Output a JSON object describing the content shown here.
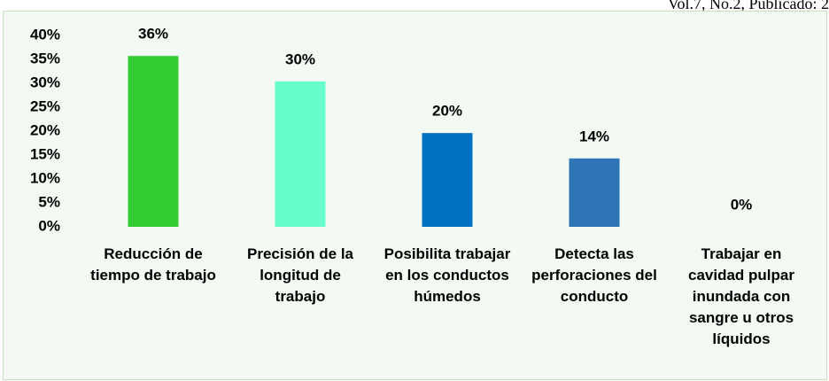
{
  "header_text": "Vol.7, No.2, Publicado: 2",
  "chart_data": {
    "type": "bar",
    "categories": [
      "Reducción de tiempo de trabajo",
      "Precisión de la longitud de trabajo",
      "Posibilita trabajar en los conductos húmedos",
      "Detecta las perforaciones del conducto",
      "Trabajar en cavidad pulpar inundada con sangre u otros líquidos"
    ],
    "values": [
      35.7,
      30.4,
      19.6,
      14.3,
      0
    ],
    "value_labels": [
      "36%",
      "30%",
      "20%",
      "14%",
      "0%"
    ],
    "colors": [
      "#33cc33",
      "#66ffcc",
      "#0070c0",
      "#2e75b6",
      "#2e75b6"
    ],
    "ylim": [
      0,
      40
    ],
    "yticks": [
      {
        "value": 0,
        "label": "0%"
      },
      {
        "value": 5,
        "label": "5%"
      },
      {
        "value": 10,
        "label": "10%"
      },
      {
        "value": 15,
        "label": "15%"
      },
      {
        "value": 20,
        "label": "20%"
      },
      {
        "value": 25,
        "label": "25%"
      },
      {
        "value": 30,
        "label": "30%"
      },
      {
        "value": 35,
        "label": "35%"
      },
      {
        "value": 40,
        "label": "40%"
      }
    ],
    "grid": false
  }
}
